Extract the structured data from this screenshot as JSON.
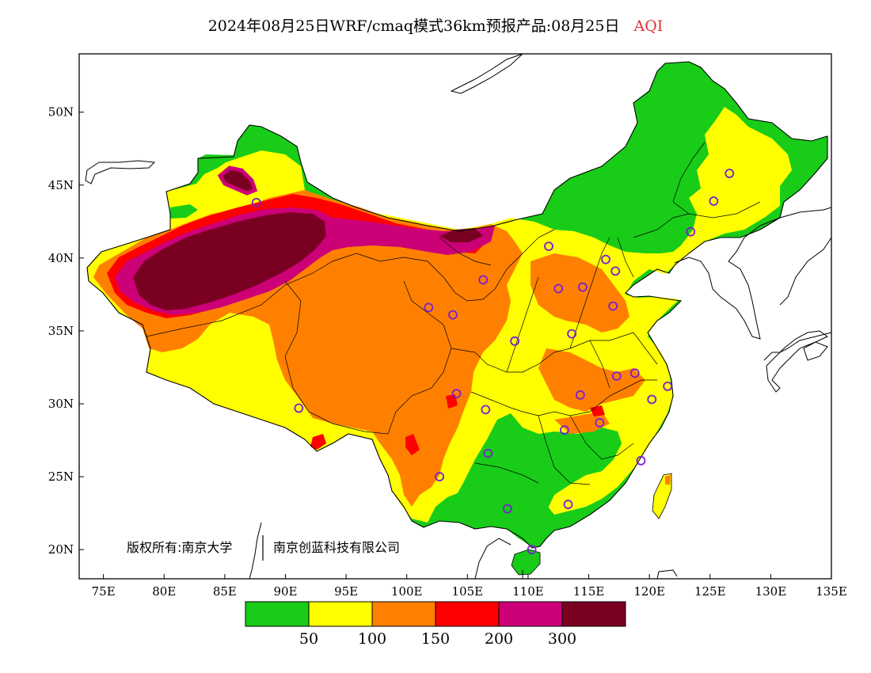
{
  "title": {
    "main": "2024年08月25日WRF/cmaq模式36km预报产品:08月25日",
    "variable": "AQI"
  },
  "copyright": {
    "left": "版权所有:南京大学",
    "right": "南京创蓝科技有限公司"
  },
  "map": {
    "lon_range": [
      73,
      135
    ],
    "lat_range": [
      18,
      54
    ],
    "lon_ticks": [
      "75E",
      "80E",
      "85E",
      "90E",
      "95E",
      "100E",
      "105E",
      "110E",
      "115E",
      "120E",
      "125E",
      "130E",
      "135E"
    ],
    "lon_values": [
      75,
      80,
      85,
      90,
      95,
      100,
      105,
      110,
      115,
      120,
      125,
      130,
      135
    ],
    "lat_ticks": [
      "20N",
      "25N",
      "30N",
      "35N",
      "40N",
      "45N",
      "50N"
    ],
    "lat_values": [
      20,
      25,
      30,
      35,
      40,
      45,
      50
    ]
  },
  "legend": {
    "colors": [
      "#18cc18",
      "#ffff00",
      "#ff8000",
      "#ff0000",
      "#cc0077",
      "#7a0022"
    ],
    "labels": [
      "50",
      "100",
      "150",
      "200",
      "300"
    ]
  },
  "stations": [
    {
      "lon": 87.6,
      "lat": 43.8
    },
    {
      "lon": 91.1,
      "lat": 29.7
    },
    {
      "lon": 101.8,
      "lat": 36.6
    },
    {
      "lon": 103.8,
      "lat": 36.1
    },
    {
      "lon": 106.3,
      "lat": 38.5
    },
    {
      "lon": 104.1,
      "lat": 30.7
    },
    {
      "lon": 106.5,
      "lat": 29.6
    },
    {
      "lon": 106.7,
      "lat": 26.6
    },
    {
      "lon": 102.7,
      "lat": 25.0
    },
    {
      "lon": 108.3,
      "lat": 22.8
    },
    {
      "lon": 110.3,
      "lat": 20.0
    },
    {
      "lon": 113.3,
      "lat": 23.1
    },
    {
      "lon": 108.9,
      "lat": 34.3
    },
    {
      "lon": 111.7,
      "lat": 40.8
    },
    {
      "lon": 112.5,
      "lat": 37.9
    },
    {
      "lon": 114.5,
      "lat": 38.0
    },
    {
      "lon": 116.4,
      "lat": 39.9
    },
    {
      "lon": 117.2,
      "lat": 39.1
    },
    {
      "lon": 117.0,
      "lat": 36.7
    },
    {
      "lon": 113.6,
      "lat": 34.8
    },
    {
      "lon": 114.3,
      "lat": 30.6
    },
    {
      "lon": 113.0,
      "lat": 28.2
    },
    {
      "lon": 115.9,
      "lat": 28.7
    },
    {
      "lon": 117.3,
      "lat": 31.9
    },
    {
      "lon": 118.8,
      "lat": 32.1
    },
    {
      "lon": 120.2,
      "lat": 30.3
    },
    {
      "lon": 121.5,
      "lat": 31.2
    },
    {
      "lon": 119.3,
      "lat": 26.1
    },
    {
      "lon": 123.4,
      "lat": 41.8
    },
    {
      "lon": 125.3,
      "lat": 43.9
    },
    {
      "lon": 126.6,
      "lat": 45.8
    }
  ]
}
